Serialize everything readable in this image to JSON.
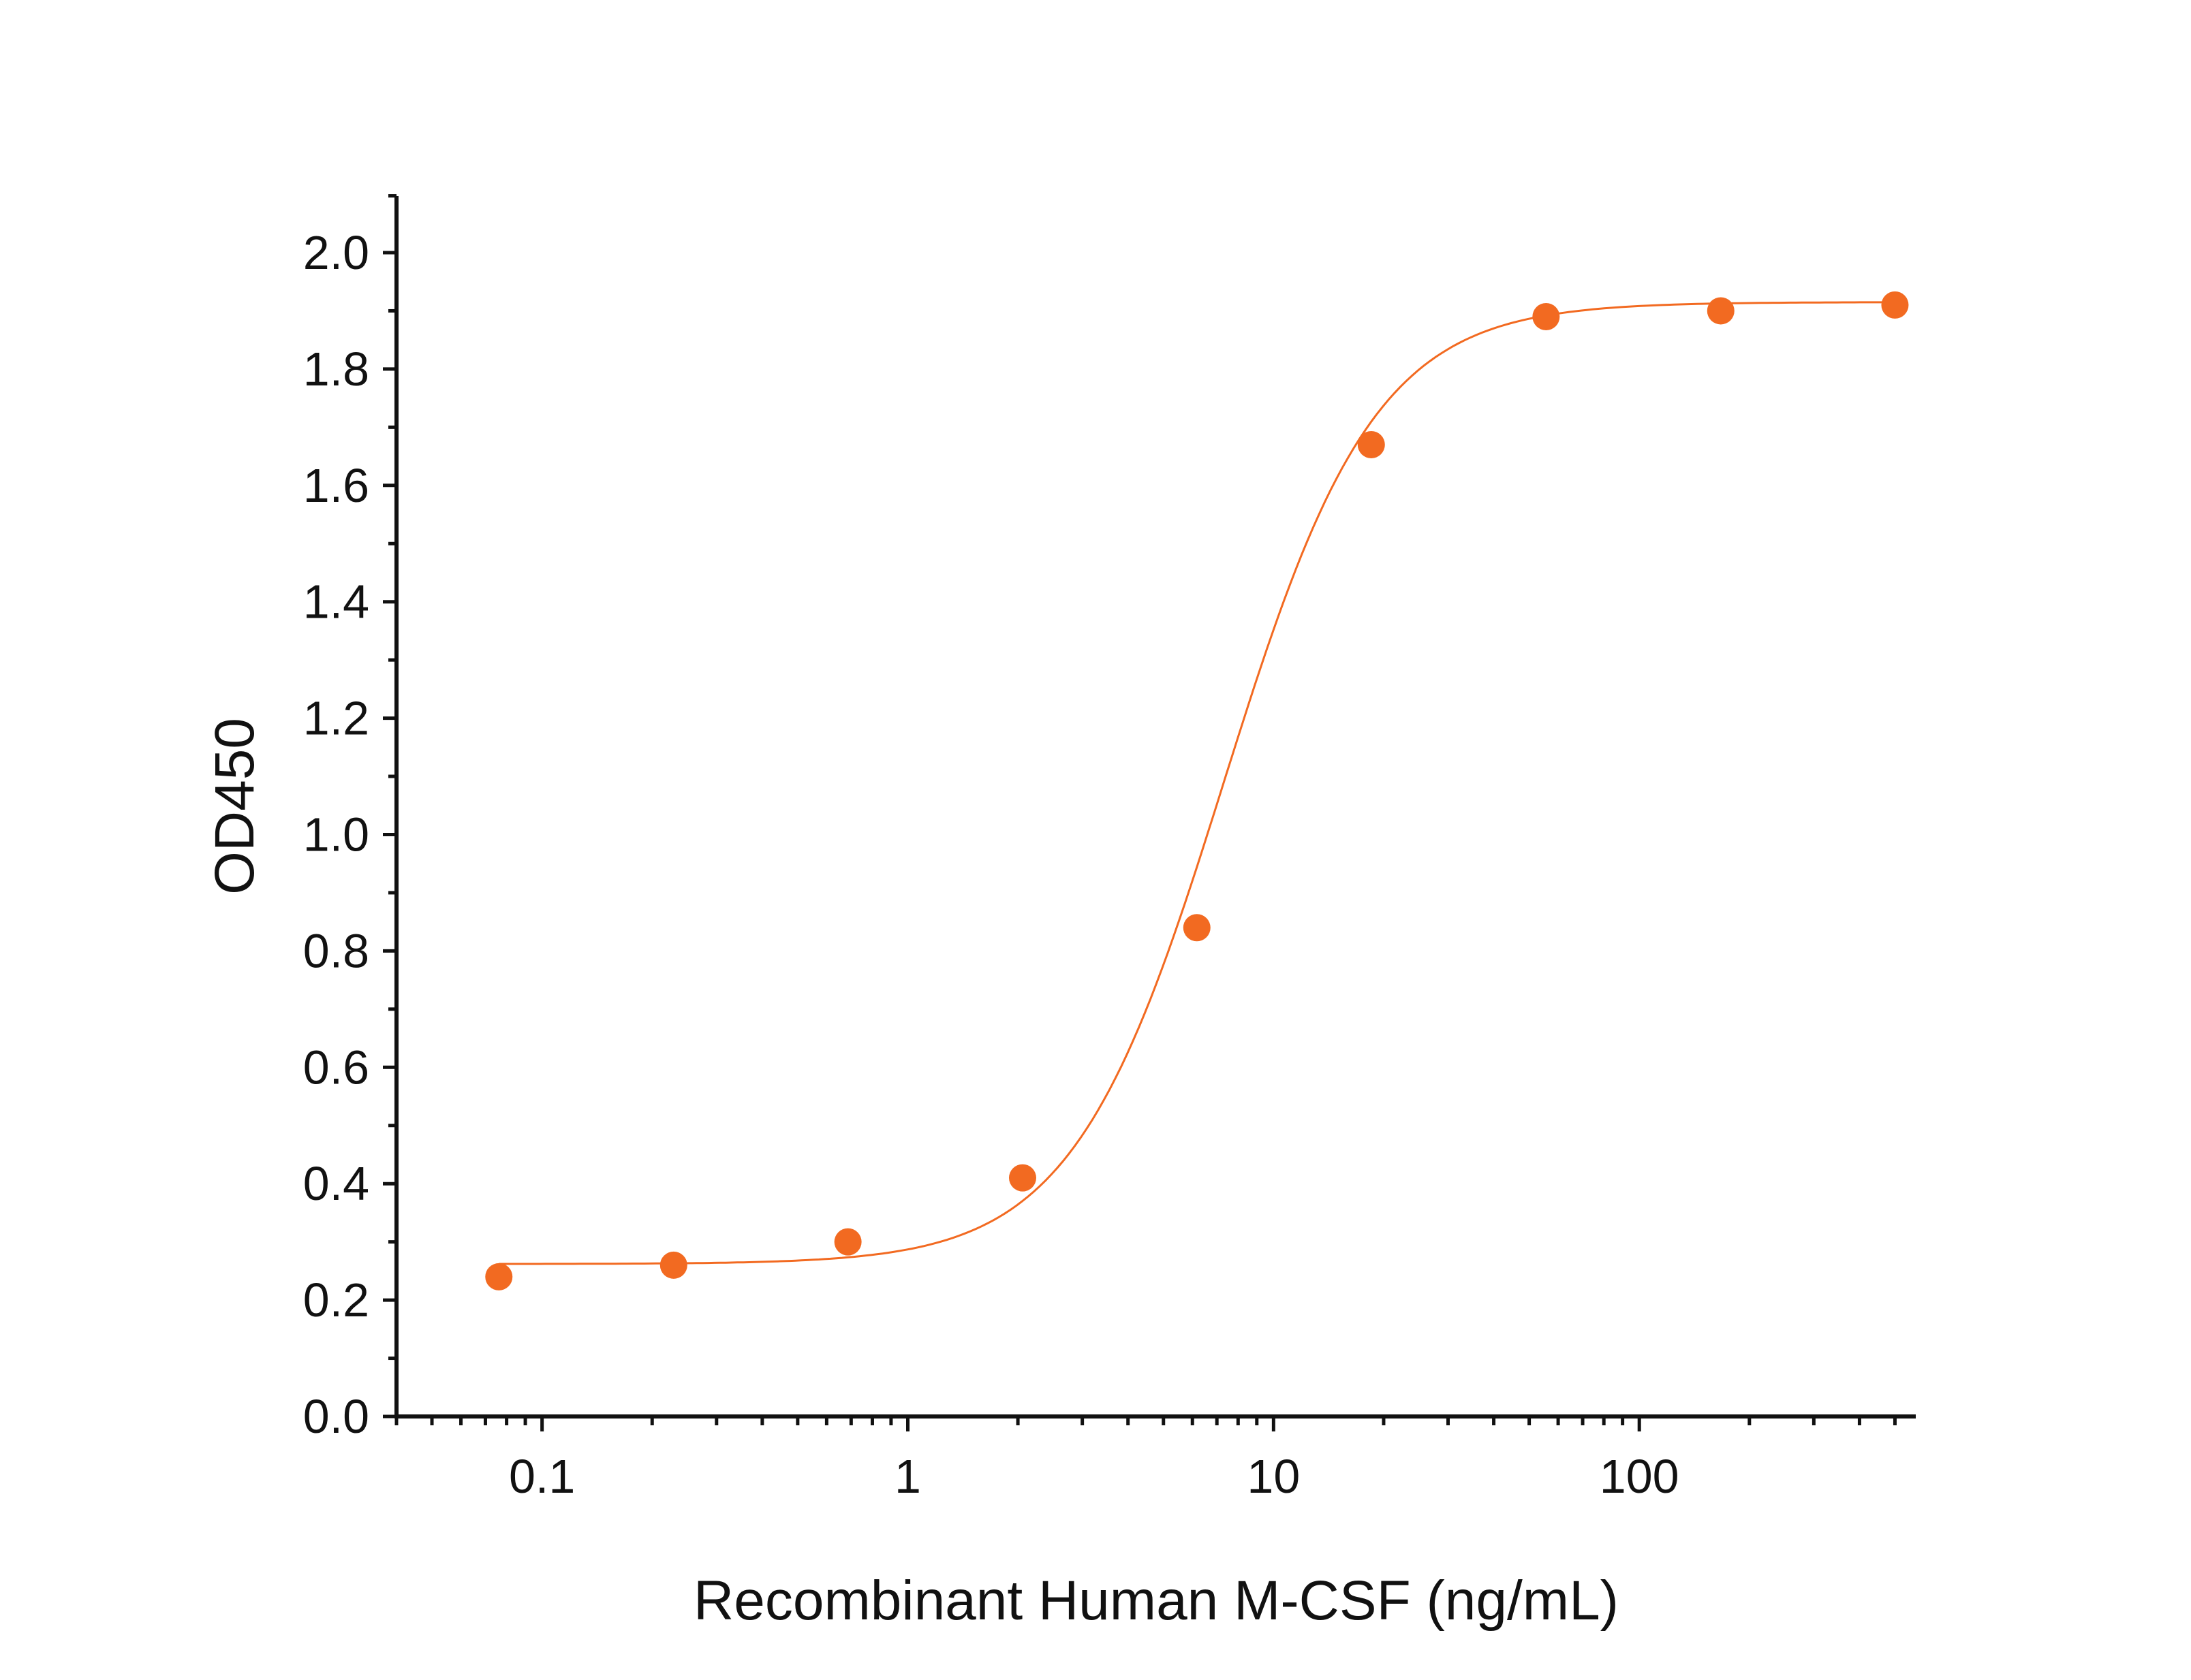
{
  "chart_data": {
    "type": "scatter",
    "title": "",
    "xlabel": "Recombinant Human M-CSF (ng/mL)",
    "ylabel": "OD450",
    "x_scale": "log",
    "xlim": [
      0.04,
      570
    ],
    "ylim": [
      0,
      2.1
    ],
    "x_ticks": [
      {
        "value": 0.1,
        "label": "0.1"
      },
      {
        "value": 1,
        "label": "1"
      },
      {
        "value": 10,
        "label": "10"
      },
      {
        "value": 100,
        "label": "100"
      }
    ],
    "y_ticks": [
      {
        "value": 0.0,
        "label": "0.0"
      },
      {
        "value": 0.2,
        "label": "0.2"
      },
      {
        "value": 0.4,
        "label": "0.4"
      },
      {
        "value": 0.6,
        "label": "0.6"
      },
      {
        "value": 0.8,
        "label": "0.8"
      },
      {
        "value": 1.0,
        "label": "1.0"
      },
      {
        "value": 1.2,
        "label": "1.2"
      },
      {
        "value": 1.4,
        "label": "1.4"
      },
      {
        "value": 1.6,
        "label": "1.6"
      },
      {
        "value": 1.8,
        "label": "1.8"
      },
      {
        "value": 2.0,
        "label": "2.0"
      }
    ],
    "series": [
      {
        "x": [
          0.0762,
          0.229,
          0.686,
          2.06,
          6.17,
          18.5,
          55.6,
          167,
          500
        ],
        "y": [
          0.24,
          0.26,
          0.3,
          0.41,
          0.84,
          1.67,
          1.89,
          1.9,
          1.91
        ],
        "marker": "circle",
        "fit": {
          "model": "4PL",
          "bottom": 0.262,
          "top": 1.915,
          "ec50": 7.3,
          "hill": 2.1
        }
      }
    ],
    "colors": {
      "series": "#f26a21",
      "axis": "#111111"
    },
    "grid": false,
    "legend": "none"
  }
}
